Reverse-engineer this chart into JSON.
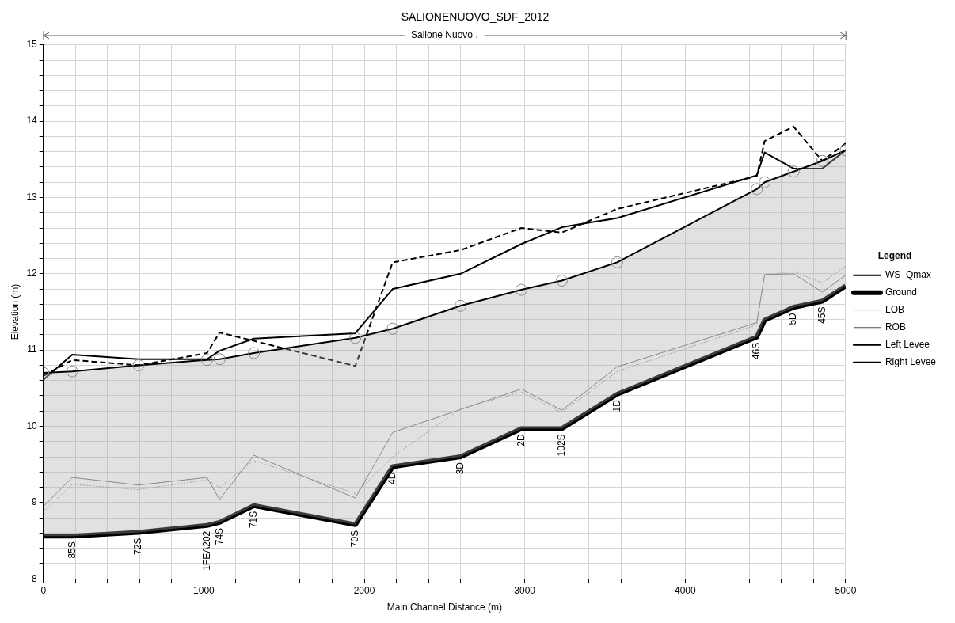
{
  "chart_data": {
    "type": "line",
    "title": "SALIONENUOVO_SDF_2012",
    "xlabel": "Main Channel Distance (m)",
    "ylabel": "Elevation (m)",
    "legend_title": "Legend",
    "legend": "right",
    "grid": true,
    "x": [
      0,
      180,
      593,
      1020,
      1098,
      1312,
      1944,
      2177,
      2600,
      2979,
      3231,
      3576,
      4446,
      4495,
      4675,
      4854,
      5000
    ],
    "xlim": [
      0,
      5000
    ],
    "xticks": [
      0,
      {
        "value": 200,
        "label": null
      },
      {
        "value": 400,
        "label": null
      },
      {
        "value": 600,
        "label": null
      },
      {
        "value": 800,
        "label": null
      },
      1000,
      {
        "value": 1200,
        "label": null
      },
      {
        "value": 1400,
        "label": null
      },
      {
        "value": 1600,
        "label": null
      },
      {
        "value": 1800,
        "label": null
      },
      2000,
      {
        "value": 2200,
        "label": null
      },
      {
        "value": 2400,
        "label": null
      },
      {
        "value": 2600,
        "label": null
      },
      {
        "value": 2800,
        "label": null
      },
      3000,
      {
        "value": 3200,
        "label": null
      },
      {
        "value": 3400,
        "label": null
      },
      {
        "value": 3600,
        "label": null
      },
      {
        "value": 3800,
        "label": null
      },
      4000,
      {
        "value": 4200,
        "label": null
      },
      {
        "value": 4400,
        "label": null
      },
      {
        "value": 4600,
        "label": null
      },
      {
        "value": 4800,
        "label": null
      },
      5000
    ],
    "ylim": [
      8,
      15
    ],
    "yticks": [
      8,
      {
        "value": 8.2,
        "label": null
      },
      {
        "value": 8.4,
        "label": null
      },
      {
        "value": 8.6,
        "label": null
      },
      {
        "value": 8.8,
        "label": null
      },
      9,
      {
        "value": 9.2,
        "label": null
      },
      {
        "value": 9.4,
        "label": null
      },
      {
        "value": 9.6,
        "label": null
      },
      {
        "value": 9.8,
        "label": null
      },
      10,
      {
        "value": 10.2,
        "label": null
      },
      {
        "value": 10.4,
        "label": null
      },
      {
        "value": 10.6,
        "label": null
      },
      {
        "value": 10.8,
        "label": null
      },
      11,
      {
        "value": 11.2,
        "label": null
      },
      {
        "value": 11.4,
        "label": null
      },
      {
        "value": 11.6,
        "label": null
      },
      {
        "value": 11.8,
        "label": null
      },
      12,
      {
        "value": 12.2,
        "label": null
      },
      {
        "value": 12.4,
        "label": null
      },
      {
        "value": 12.6,
        "label": null
      },
      {
        "value": 12.8,
        "label": null
      },
      13,
      {
        "value": 13.2,
        "label": null
      },
      {
        "value": 13.4,
        "label": null
      },
      {
        "value": 13.6,
        "label": null
      },
      {
        "value": 13.8,
        "label": null
      },
      14,
      {
        "value": 14.2,
        "label": null
      },
      {
        "value": 14.4,
        "label": null
      },
      {
        "value": 14.6,
        "label": null
      },
      {
        "value": 14.8,
        "label": null
      },
      15
    ],
    "series": [
      {
        "name": "WS  Qmax",
        "type": "area",
        "color": "#000000",
        "marker": "circle",
        "values": [
          10.7,
          10.72,
          10.8,
          10.87,
          10.88,
          10.96,
          11.16,
          11.28,
          11.58,
          11.79,
          11.91,
          12.15,
          13.11,
          13.2,
          13.34,
          13.48,
          13.62
        ]
      },
      {
        "name": "Ground",
        "color": "#000000",
        "marker": "none",
        "values": [
          8.56,
          8.56,
          8.61,
          8.7,
          8.74,
          8.96,
          8.71,
          9.47,
          9.6,
          9.97,
          9.97,
          10.42,
          11.17,
          11.39,
          11.56,
          11.64,
          11.84
        ]
      },
      {
        "name": "LOB",
        "color": "#999999",
        "marker": "none",
        "line_style": "dotted",
        "values": [
          8.88,
          9.24,
          9.17,
          9.3,
          9.2,
          9.55,
          9.12,
          9.6,
          10.23,
          10.45,
          10.18,
          10.72,
          11.33,
          11.98,
          12.03,
          11.88,
          12.1
        ]
      },
      {
        "name": "ROB",
        "color": "#777777",
        "marker": "none",
        "values": [
          8.95,
          9.33,
          9.23,
          9.33,
          9.04,
          9.62,
          9.06,
          9.92,
          10.22,
          10.49,
          10.21,
          10.78,
          11.36,
          11.99,
          12.0,
          11.76,
          11.98
        ]
      },
      {
        "name": "Left Levee",
        "color": "#000000",
        "marker": "none",
        "line_style": "dashed",
        "values": [
          10.66,
          10.87,
          10.8,
          10.96,
          11.23,
          11.12,
          10.79,
          12.15,
          12.31,
          12.6,
          12.54,
          12.85,
          13.28,
          13.74,
          13.93,
          13.48,
          13.71
        ]
      },
      {
        "name": "Right Levee",
        "color": "#000000",
        "marker": "none",
        "values": [
          10.61,
          10.94,
          10.88,
          10.88,
          10.99,
          11.15,
          11.22,
          11.8,
          12.0,
          12.39,
          12.61,
          12.73,
          13.29,
          13.59,
          13.38,
          13.38,
          13.62
        ]
      }
    ],
    "annotations": [
      "Salione Nuovo .",
      {
        "text": "85S",
        "x": 180,
        "y": 8.56
      },
      {
        "text": "72S",
        "x": 593,
        "y": 8.61
      },
      {
        "text": "1FEA202",
        "x": 1020,
        "y": 8.7
      },
      {
        "text": "74S",
        "x": 1098,
        "y": 8.74
      },
      {
        "text": "71S",
        "x": 1312,
        "y": 8.96
      },
      {
        "text": "70S",
        "x": 1944,
        "y": 8.71
      },
      {
        "text": "4D",
        "x": 2177,
        "y": 9.47
      },
      {
        "text": "3D",
        "x": 2600,
        "y": 9.6
      },
      {
        "text": "2D",
        "x": 2979,
        "y": 9.97
      },
      {
        "text": "102S",
        "x": 3231,
        "y": 9.97
      },
      {
        "text": "1D",
        "x": 3576,
        "y": 10.42
      },
      {
        "text": "46S",
        "x": 4446,
        "y": 11.17
      },
      {
        "text": "5D",
        "x": 4675,
        "y": 11.56
      },
      {
        "text": "45S",
        "x": 4854,
        "y": 11.64
      }
    ]
  }
}
